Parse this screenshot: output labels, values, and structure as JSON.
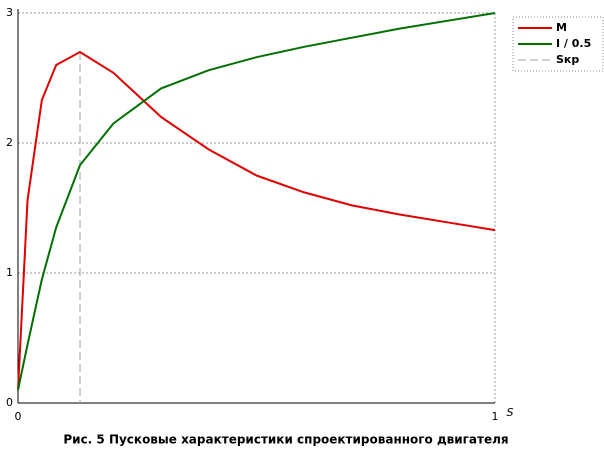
{
  "chart_data": {
    "type": "line",
    "caption": "Рис. 5 Пусковые характеристики спроектированного двигателя",
    "x_label": "S",
    "x": [
      0,
      0.02,
      0.05,
      0.08,
      0.13,
      0.2,
      0.3,
      0.4,
      0.5,
      0.6,
      0.7,
      0.8,
      0.9,
      1
    ],
    "series": [
      {
        "name": "M",
        "color": "#e00000",
        "values": [
          0.1,
          1.56,
          2.33,
          2.6,
          2.7,
          2.54,
          2.2,
          1.95,
          1.75,
          1.62,
          1.52,
          1.45,
          1.39,
          1.33
        ]
      },
      {
        "name": "I / 0.5",
        "color": "#007000",
        "values": [
          0.1,
          0.45,
          0.95,
          1.35,
          1.83,
          2.15,
          2.42,
          2.56,
          2.66,
          2.74,
          2.81,
          2.88,
          2.94,
          3.0
        ]
      }
    ],
    "vlines": [
      {
        "name": "Sкр",
        "x": 0.13,
        "color": "#a0a0a0"
      }
    ],
    "xlim": [
      0,
      1
    ],
    "xticks": [
      0,
      1
    ],
    "ylim": [
      0,
      3
    ],
    "yticks": [
      0,
      1,
      2,
      3
    ],
    "grid": true,
    "legend": "top-right"
  }
}
